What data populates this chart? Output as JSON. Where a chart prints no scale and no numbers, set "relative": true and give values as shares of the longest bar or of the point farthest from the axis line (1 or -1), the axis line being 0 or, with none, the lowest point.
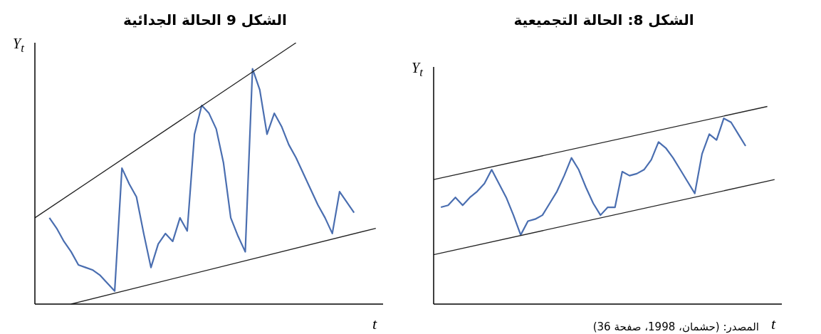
{
  "chart_data": [
    {
      "type": "line",
      "title": "الشكل 9 الحالة الجدائية",
      "xlabel": "t",
      "ylabel": "Y$_{t}$",
      "relative": true,
      "marker": "none",
      "line_style": "solid",
      "categories": [
        null,
        null,
        null,
        null,
        null,
        null,
        null,
        null,
        null,
        null,
        null,
        null,
        null,
        null,
        null,
        null,
        null,
        null,
        null,
        null,
        null,
        null,
        null,
        null,
        null,
        null,
        null,
        null,
        null,
        null,
        null,
        null,
        null,
        null,
        null,
        null,
        null,
        null,
        null,
        null,
        null,
        null,
        null,
        null,
        null,
        null,
        null,
        null
      ],
      "series": [
        {
          "color": "#4a6eb0",
          "values": [
            null,
            null,
            0.33,
            0.29,
            0.24,
            0.2,
            0.15,
            0.14,
            0.13,
            0.11,
            0.08,
            0.05,
            0.52,
            0.46,
            0.41,
            0.27,
            0.14,
            0.23,
            0.27,
            0.24,
            0.33,
            0.28,
            0.65,
            0.76,
            0.73,
            0.67,
            0.54,
            0.33,
            0.26,
            0.2,
            0.9,
            0.82,
            0.65,
            0.73,
            0.68,
            0.61,
            0.56,
            0.5,
            0.44,
            0.38,
            0.33,
            0.27,
            0.43,
            0.39,
            0.35,
            null,
            null,
            null
          ]
        },
        {
          "type": "line",
          "color": "#222222",
          "values": [
            0.33,
            null,
            null,
            null,
            null,
            null,
            null,
            null,
            null,
            null,
            null,
            null,
            null,
            null,
            null,
            null,
            null,
            null,
            null,
            null,
            null,
            null,
            null,
            null,
            null,
            null,
            null,
            null,
            null,
            null,
            null,
            null,
            null,
            null,
            null,
            null,
            1.0,
            null,
            null,
            null,
            null,
            null,
            null,
            null,
            null,
            null,
            null,
            null
          ]
        },
        {
          "type": "line",
          "color": "#222222",
          "values": [
            null,
            null,
            null,
            null,
            null,
            0,
            null,
            null,
            null,
            null,
            null,
            null,
            null,
            null,
            null,
            null,
            null,
            null,
            null,
            null,
            null,
            null,
            null,
            null,
            null,
            null,
            null,
            null,
            null,
            null,
            null,
            null,
            null,
            null,
            null,
            null,
            null,
            null,
            null,
            null,
            null,
            null,
            null,
            null,
            null,
            null,
            null,
            0.29
          ]
        }
      ]
    },
    {
      "type": "line",
      "title": "الشكل 8: الحالة التجميعية",
      "xlabel": "t",
      "ylabel": "Y$_{t}$",
      "relative": true,
      "marker": "none",
      "line_style": "solid",
      "annotations": [
        "المصدر: (حشمان، 1998، صفحة 36)"
      ],
      "categories": [
        null,
        null,
        null,
        null,
        null,
        null,
        null,
        null,
        null,
        null,
        null,
        null,
        null,
        null,
        null,
        null,
        null,
        null,
        null,
        null,
        null,
        null,
        null,
        null,
        null,
        null,
        null,
        null,
        null,
        null,
        null,
        null,
        null,
        null,
        null,
        null,
        null,
        null,
        null,
        null,
        null,
        null,
        null,
        null,
        null,
        null,
        null,
        null
      ],
      "series": [
        {
          "color": "#4a6eb0",
          "values": [
            null,
            0.49,
            0.5,
            0.54,
            0.5,
            0.54,
            0.57,
            0.61,
            0.68,
            0.61,
            0.54,
            0.45,
            0.35,
            0.42,
            0.43,
            0.45,
            0.51,
            0.57,
            0.65,
            0.74,
            0.68,
            0.59,
            0.51,
            0.45,
            0.49,
            0.49,
            0.67,
            0.65,
            0.66,
            0.68,
            0.73,
            0.82,
            0.79,
            0.74,
            0.68,
            0.62,
            0.56,
            0.76,
            0.86,
            0.83,
            0.94,
            0.92,
            0.86,
            0.8,
            null,
            null,
            null,
            null
          ]
        },
        {
          "type": "line",
          "color": "#222222",
          "values": [
            0.63,
            null,
            null,
            null,
            null,
            null,
            null,
            null,
            null,
            null,
            null,
            null,
            null,
            null,
            null,
            null,
            null,
            null,
            null,
            null,
            null,
            null,
            null,
            null,
            null,
            null,
            null,
            null,
            null,
            null,
            null,
            null,
            null,
            null,
            null,
            null,
            null,
            null,
            null,
            null,
            null,
            null,
            null,
            null,
            null,
            null,
            1.0,
            null
          ]
        },
        {
          "type": "line",
          "color": "#222222",
          "values": [
            0.25,
            null,
            null,
            null,
            null,
            null,
            null,
            null,
            null,
            null,
            null,
            null,
            null,
            null,
            null,
            null,
            null,
            null,
            null,
            null,
            null,
            null,
            null,
            null,
            null,
            null,
            null,
            null,
            null,
            null,
            null,
            null,
            null,
            null,
            null,
            null,
            null,
            null,
            null,
            null,
            null,
            null,
            null,
            null,
            null,
            null,
            null,
            0.63
          ]
        }
      ]
    }
  ]
}
